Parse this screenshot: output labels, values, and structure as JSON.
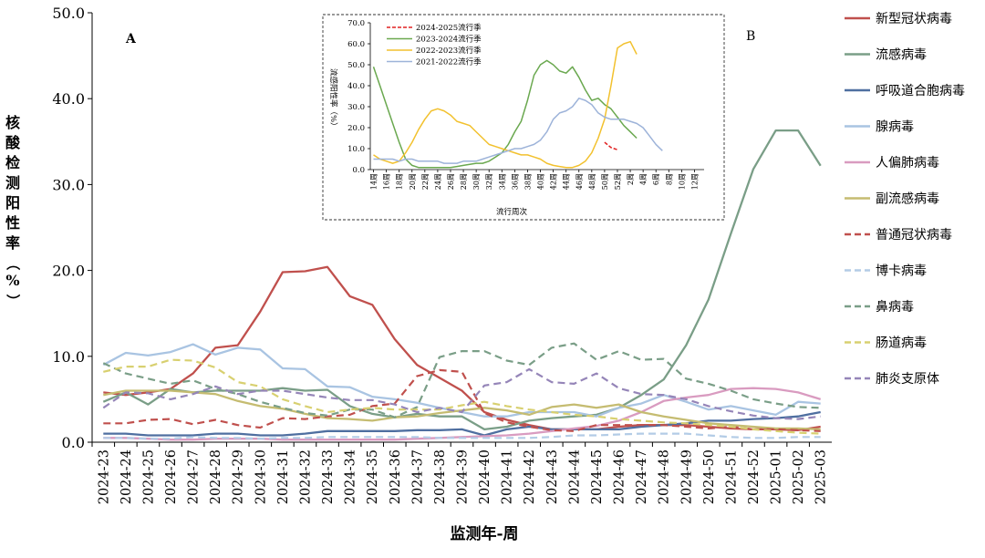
{
  "chart_data": [
    {
      "type": "line",
      "panel_label": "A",
      "ylabel": "核酸检测阳性率（%）",
      "xlabel": "监测年-周",
      "ylim": [
        0,
        50
      ],
      "yticks": [
        "0.0",
        "10.0",
        "20.0",
        "30.0",
        "40.0",
        "50.0"
      ],
      "ytick_values": [
        0,
        10,
        20,
        30,
        40,
        50
      ],
      "categories": [
        "2024-23",
        "2024-24",
        "2024-25",
        "2024-26",
        "2024-27",
        "2024-28",
        "2024-29",
        "2024-30",
        "2024-31",
        "2024-32",
        "2024-33",
        "2024-34",
        "2024-35",
        "2024-36",
        "2024-37",
        "2024-38",
        "2024-39",
        "2024-40",
        "2024-41",
        "2024-42",
        "2024-43",
        "2024-44",
        "2024-45",
        "2024-46",
        "2024-47",
        "2024-48",
        "2024-49",
        "2024-50",
        "2024-51",
        "2024-52",
        "2025-01",
        "2025-02",
        "2025-03"
      ],
      "legend_position": "right",
      "series": [
        {
          "name": "新型冠状病毒",
          "color": "#c0504d",
          "dash": "solid",
          "values": [
            5.8,
            5.5,
            5.8,
            6.2,
            8.0,
            11.0,
            11.3,
            15.2,
            19.8,
            19.9,
            20.4,
            17.0,
            16.0,
            12.0,
            9.0,
            7.5,
            6.0,
            3.5,
            2.6,
            2.0,
            1.5,
            1.5,
            1.5,
            1.8,
            2.0,
            2.0,
            2.0,
            1.8,
            1.6,
            1.5,
            1.5,
            1.4,
            1.8
          ]
        },
        {
          "name": "流感病毒",
          "color": "#7a9e87",
          "dash": "solid",
          "values": [
            4.7,
            5.8,
            4.4,
            6.2,
            5.8,
            6.0,
            6.0,
            6.0,
            6.3,
            6.0,
            6.1,
            4.2,
            3.3,
            2.9,
            3.3,
            3.0,
            3.0,
            1.5,
            1.8,
            2.5,
            2.8,
            3.0,
            3.2,
            4.0,
            5.5,
            7.3,
            11.3,
            16.6,
            24.3,
            31.8,
            36.3,
            36.3,
            32.2
          ]
        },
        {
          "name": "呼吸道合胞病毒",
          "color": "#4f6fa0",
          "dash": "solid",
          "values": [
            1.0,
            1.0,
            0.8,
            0.8,
            0.8,
            1.0,
            1.0,
            0.8,
            0.8,
            1.0,
            1.3,
            1.3,
            1.3,
            1.3,
            1.4,
            1.4,
            1.5,
            0.8,
            1.5,
            1.8,
            1.5,
            1.5,
            1.5,
            1.5,
            1.8,
            2.0,
            2.2,
            2.5,
            2.5,
            2.7,
            2.8,
            3.0,
            3.5
          ]
        },
        {
          "name": "腺病毒",
          "color": "#a9c4e2",
          "dash": "solid",
          "values": [
            9.0,
            10.4,
            10.1,
            10.5,
            11.4,
            10.2,
            11.0,
            10.8,
            8.6,
            8.5,
            6.5,
            6.4,
            5.3,
            5.0,
            4.6,
            4.0,
            3.5,
            3.0,
            3.0,
            3.5,
            3.5,
            3.5,
            3.0,
            4.0,
            4.5,
            5.5,
            4.7,
            3.8,
            4.2,
            3.7,
            3.2,
            4.7,
            4.5
          ]
        },
        {
          "name": "人偏肺病毒",
          "color": "#d99bc0",
          "dash": "solid",
          "values": [
            0.5,
            0.5,
            0.4,
            0.3,
            0.3,
            0.4,
            0.4,
            0.4,
            0.3,
            0.3,
            0.3,
            0.3,
            0.3,
            0.3,
            0.4,
            0.5,
            0.6,
            0.7,
            0.8,
            1.0,
            1.3,
            1.6,
            1.9,
            2.5,
            3.5,
            4.8,
            5.2,
            5.5,
            6.2,
            6.3,
            6.2,
            5.8,
            5.0
          ]
        },
        {
          "name": "副流感病毒",
          "color": "#c5bc71",
          "dash": "solid",
          "values": [
            5.5,
            6.0,
            6.0,
            6.0,
            5.8,
            5.6,
            4.8,
            4.2,
            3.9,
            3.3,
            2.8,
            2.7,
            2.5,
            2.9,
            3.0,
            3.4,
            3.7,
            4.0,
            3.7,
            3.2,
            4.1,
            4.4,
            4.0,
            4.4,
            3.5,
            3.0,
            2.6,
            2.2,
            2.0,
            1.8,
            1.6,
            1.6,
            1.5
          ]
        },
        {
          "name": "普通冠状病毒",
          "color": "#c0504d",
          "dash": "dashed",
          "values": [
            2.2,
            2.2,
            2.6,
            2.7,
            2.1,
            2.6,
            2.0,
            1.7,
            2.8,
            2.7,
            3.0,
            3.2,
            4.2,
            4.5,
            7.7,
            8.4,
            8.2,
            3.4,
            2.3,
            1.8,
            1.4,
            1.3,
            2.0,
            2.0,
            2.0,
            2.0,
            1.8,
            1.6,
            1.8,
            1.5,
            1.5,
            1.4,
            1.3
          ]
        },
        {
          "name": "博卡病毒",
          "color": "#b3cce6",
          "dash": "dashed",
          "values": [
            0.5,
            0.5,
            0.4,
            0.4,
            0.6,
            0.5,
            0.5,
            0.4,
            0.5,
            0.5,
            0.6,
            0.6,
            0.6,
            0.6,
            0.6,
            0.5,
            0.5,
            0.5,
            0.5,
            0.5,
            0.6,
            0.8,
            0.8,
            0.9,
            1.0,
            1.0,
            1.0,
            0.8,
            0.6,
            0.5,
            0.5,
            0.6,
            0.6
          ]
        },
        {
          "name": "鼻病毒",
          "color": "#7a9e87",
          "dash": "dashed",
          "values": [
            9.2,
            8.0,
            7.4,
            6.8,
            7.2,
            6.2,
            5.6,
            4.7,
            4.0,
            3.4,
            3.1,
            3.8,
            3.8,
            2.9,
            4.1,
            9.9,
            10.6,
            10.6,
            9.5,
            9.0,
            11.0,
            11.5,
            9.6,
            10.6,
            9.6,
            9.7,
            7.4,
            6.8,
            6.0,
            5.0,
            4.5,
            4.1,
            4.0
          ]
        },
        {
          "name": "肠道病毒",
          "color": "#d8d070",
          "dash": "dashed",
          "values": [
            8.2,
            8.8,
            8.8,
            9.6,
            9.5,
            8.7,
            7.0,
            6.5,
            5.0,
            4.2,
            3.5,
            3.8,
            4.0,
            3.8,
            3.8,
            3.8,
            4.3,
            4.7,
            4.2,
            3.8,
            3.5,
            3.2,
            3.0,
            2.7,
            2.5,
            2.3,
            2.2,
            2.0,
            1.8,
            1.5,
            1.3,
            1.1,
            1.0
          ]
        },
        {
          "name": "肺炎支原体",
          "color": "#9585b8",
          "dash": "dashed",
          "values": [
            4.0,
            5.8,
            5.7,
            5.0,
            5.6,
            6.5,
            5.6,
            6.0,
            6.0,
            5.6,
            5.2,
            4.9,
            4.9,
            4.4,
            3.5,
            4.0,
            3.5,
            6.6,
            7.0,
            8.5,
            7.0,
            6.8,
            8.0,
            6.3,
            5.6,
            5.5,
            5.0,
            4.2,
            3.6,
            3.1,
            2.8,
            2.7,
            3.0
          ]
        }
      ]
    },
    {
      "type": "line",
      "panel_label": "B",
      "ylabel": "流感阳性率（%）",
      "xlabel": "流行周次",
      "ylim": [
        0,
        70
      ],
      "yticks": [
        "0.0",
        "10.0",
        "20.0",
        "30.0",
        "40.0",
        "50.0",
        "60.0",
        "70.0"
      ],
      "ytick_values": [
        0,
        10,
        20,
        30,
        40,
        50,
        60,
        70
      ],
      "categories": [
        "14周",
        "15周",
        "16周",
        "17周",
        "18周",
        "19周",
        "20周",
        "21周",
        "22周",
        "23周",
        "24周",
        "25周",
        "26周",
        "27周",
        "28周",
        "29周",
        "30周",
        "31周",
        "32周",
        "33周",
        "34周",
        "35周",
        "36周",
        "37周",
        "38周",
        "39周",
        "40周",
        "41周",
        "42周",
        "43周",
        "44周",
        "45周",
        "46周",
        "47周",
        "48周",
        "49周",
        "50周",
        "51周",
        "52周",
        "1周",
        "2周",
        "3周",
        "4周",
        "5周",
        "6周",
        "7周",
        "8周",
        "9周",
        "10周",
        "11周",
        "12周",
        "13周"
      ],
      "tick_labels": [
        "14周",
        "16周",
        "18周",
        "20周",
        "22周",
        "24周",
        "26周",
        "28周",
        "30周",
        "32周",
        "34周",
        "36周",
        "38周",
        "40周",
        "42周",
        "44周",
        "46周",
        "48周",
        "50周",
        "52周",
        "2周",
        "4周",
        "6周",
        "8周",
        "10周",
        "12周"
      ],
      "legend_position": "top-left",
      "series": [
        {
          "name": "2024-2025流行季",
          "color": "#e02020",
          "dash": "dashed",
          "values": [
            null,
            null,
            null,
            null,
            null,
            null,
            null,
            null,
            null,
            null,
            null,
            null,
            null,
            null,
            null,
            null,
            null,
            null,
            null,
            null,
            null,
            null,
            null,
            null,
            null,
            null,
            null,
            null,
            null,
            null,
            null,
            null,
            null,
            null,
            null,
            null,
            13.0,
            10.5,
            9.5,
            null,
            null,
            null,
            null,
            null,
            null,
            null,
            null,
            null,
            null,
            null,
            null,
            null
          ]
        },
        {
          "name": "2023-2024流行季",
          "color": "#6aa84f",
          "dash": "solid",
          "values": [
            49,
            40,
            31,
            22,
            13,
            5,
            2,
            1,
            1,
            1,
            1,
            1,
            1,
            1.5,
            2,
            2.5,
            3,
            3,
            4,
            6,
            8,
            12,
            18,
            23,
            33,
            45,
            50,
            52,
            50,
            47,
            46,
            49,
            44,
            38,
            33,
            34,
            31,
            29,
            25,
            21,
            18,
            15,
            null,
            null,
            null,
            null,
            null,
            null,
            null,
            null,
            null,
            null
          ]
        },
        {
          "name": "2022-2023流行季",
          "color": "#f2c12e",
          "dash": "solid",
          "values": [
            7,
            5,
            4,
            3,
            4,
            8,
            13,
            19,
            24,
            28,
            29,
            28,
            26,
            23,
            22,
            21,
            18,
            15,
            12,
            11,
            10,
            9,
            8,
            7,
            7,
            6,
            5,
            3,
            2,
            1.5,
            1,
            1,
            2,
            4,
            8,
            15,
            24,
            40,
            58,
            60,
            61,
            55,
            null,
            null,
            null,
            null,
            null,
            null,
            null,
            null,
            null,
            null
          ]
        },
        {
          "name": "2021-2022流行季",
          "color": "#9db3d9",
          "dash": "solid",
          "values": [
            5,
            5,
            5,
            5,
            4,
            5,
            5,
            4,
            4,
            4,
            4,
            3,
            3,
            3,
            4,
            4,
            4,
            5,
            6,
            7,
            8,
            9,
            10,
            10,
            11,
            12,
            14,
            18,
            24,
            27,
            28,
            30,
            34,
            33,
            31,
            27,
            25,
            24,
            24,
            24,
            23,
            22,
            20,
            16,
            12,
            9,
            null,
            null,
            null,
            null,
            null,
            null
          ]
        }
      ]
    }
  ]
}
